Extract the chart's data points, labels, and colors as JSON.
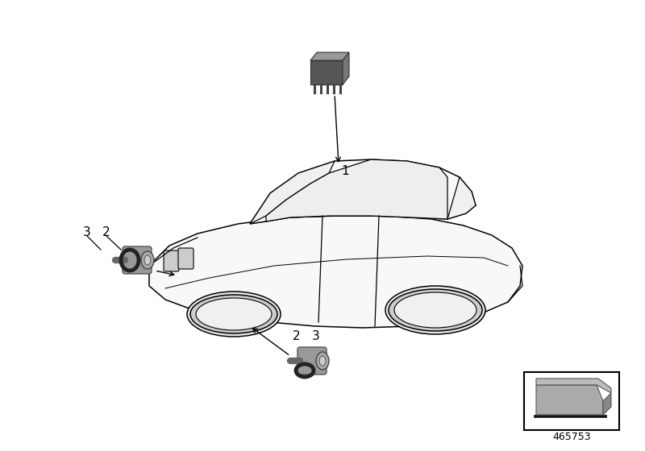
{
  "bg_color": "#ffffff",
  "part_number": "465753",
  "outline_color": "#000000",
  "body_fill": "#f8f8f8",
  "sensor_fill": "#aaaaaa",
  "sensor_dark": "#777777",
  "ring_color": "#222222",
  "unit_top": "#aaaaaa",
  "unit_front": "#666666",
  "unit_side": "#888888",
  "label_fontsize": 11,
  "annotation_lw": 1.0
}
